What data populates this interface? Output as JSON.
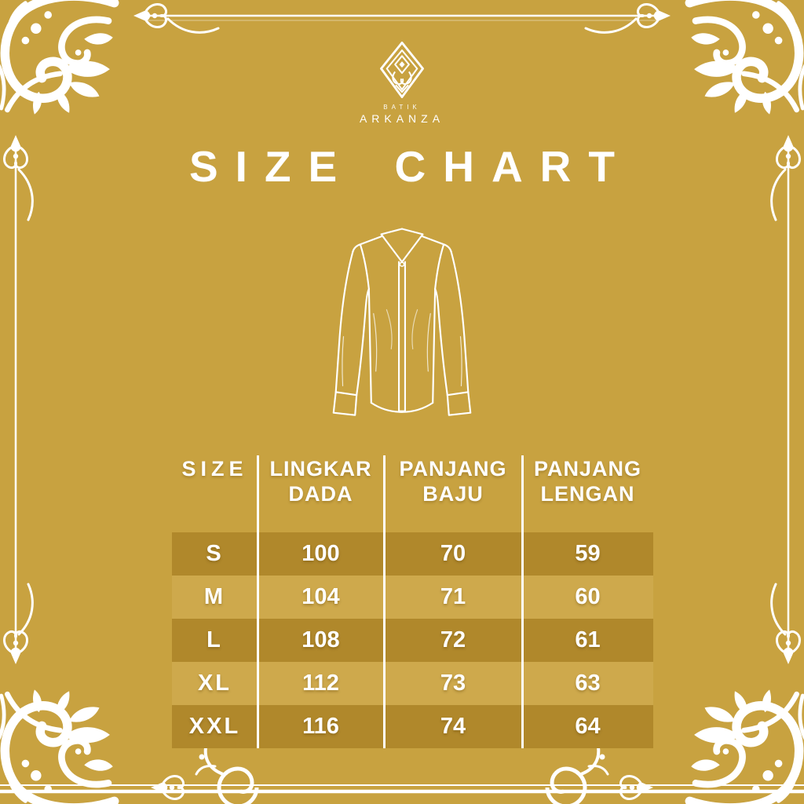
{
  "brand": {
    "line_small": "BATIK",
    "name": "ARKANZA"
  },
  "title": "SIZE CHART",
  "chart_data": {
    "type": "table",
    "title": "SIZE CHART",
    "columns": [
      "SIZE",
      "LINGKAR DADA",
      "PANJANG BAJU",
      "PANJANG LENGAN"
    ],
    "rows": [
      [
        "S",
        "100",
        "70",
        "59"
      ],
      [
        "M",
        "104",
        "71",
        "60"
      ],
      [
        "L",
        "108",
        "72",
        "61"
      ],
      [
        "XL",
        "112",
        "73",
        "63"
      ],
      [
        "XXL",
        "116",
        "74",
        "64"
      ]
    ],
    "row_shading": [
      "dark",
      "light",
      "dark",
      "light",
      "dark"
    ],
    "legend_position": "none",
    "grid": "vertical-dividers"
  },
  "colors": {
    "background": "#C8A240",
    "row_dark": "#B0882B",
    "row_light": "#CEA94C",
    "ink": "#FFFFFF"
  },
  "icons": {
    "logo": "arkanza-diamond-monogram-icon",
    "shirt": "long-sleeve-shirt-outline-icon",
    "corner_ornament": "floral-flourish-ornament",
    "finial": "fleur-de-lis-finial",
    "bottom_curl": "spiral-ring-ornament"
  }
}
